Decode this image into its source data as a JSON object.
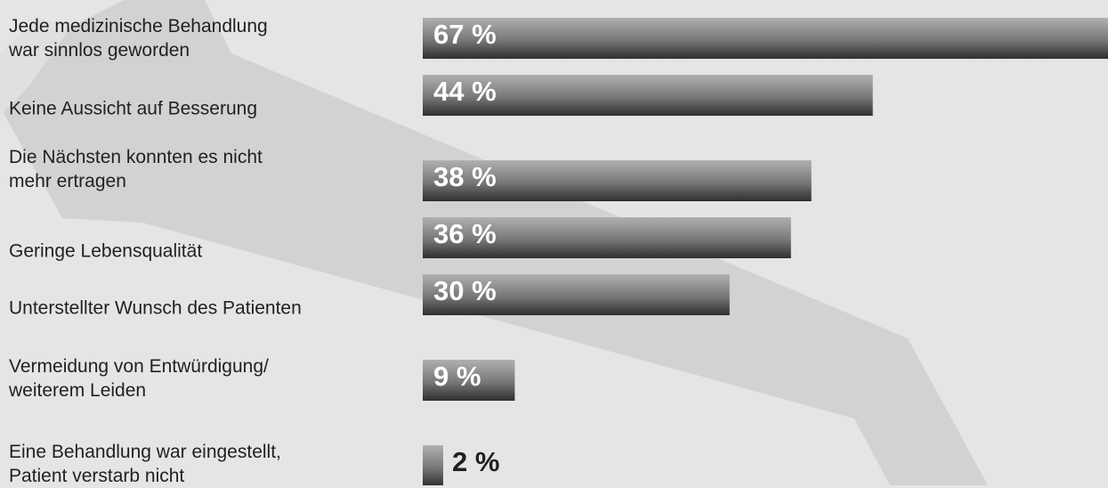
{
  "chart_data": {
    "type": "bar",
    "categories": [
      "Jede medizinische Behandlung\nwar sinnlos geworden",
      "Keine Aussicht auf Besserung",
      "Die Nächsten konnten es nicht\nmehr ertragen",
      "Geringe Lebensqualität",
      "Unterstellter Wunsch des Patienten",
      "Vermeidung von Entwürdigung/\nweiterem Leiden",
      "Eine Behandlung war eingestellt,\nPatient verstarb nicht"
    ],
    "values": [
      67,
      44,
      38,
      36,
      30,
      9,
      2
    ],
    "value_labels": [
      "67 %",
      "44 %",
      "38 %",
      "36 %",
      "30 %",
      "9 %",
      "2 %"
    ]
  }
}
